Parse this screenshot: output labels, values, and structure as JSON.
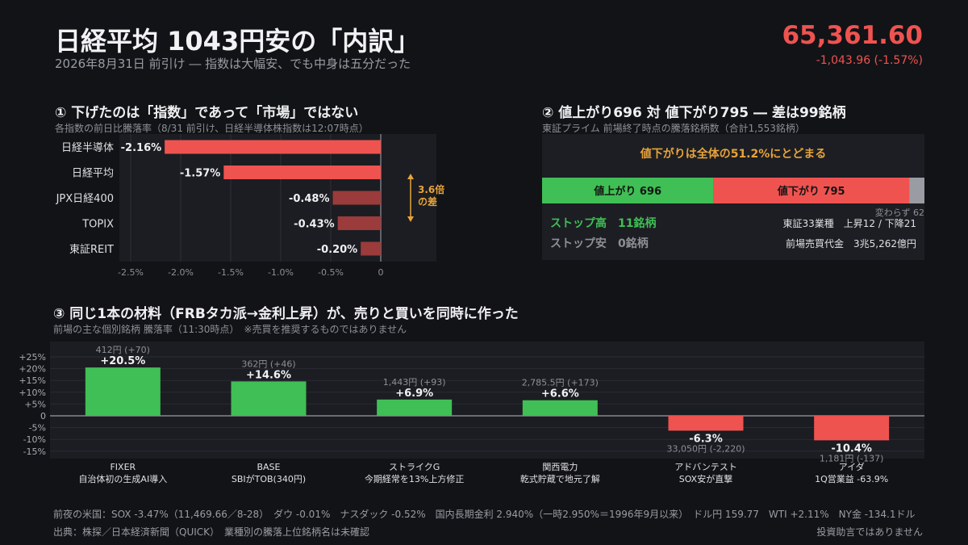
{
  "header": {
    "title": "日経平均 1043円安の「内訳」",
    "subtitle": "2026年8月31日 前引け ― 指数は大幅安、でも中身は五分だった",
    "price": "65,361.60",
    "change": "-1,043.96 (-1.57%)"
  },
  "section1": {
    "title": "① 下げたのは「指数」であって「市場」ではない",
    "subtitle": "各指数の前日比騰落率（8/31 前引け、日経半導体株指数は12:07時点）",
    "annotation_line1": "3.6倍",
    "annotation_line2": "の差"
  },
  "section2": {
    "title": "② 値上がり696 対 値下がり795 ― 差は99銘柄",
    "subtitle": "東証プライム 前場終了時点の騰落銘柄数（合計1,553銘柄）",
    "headline": "値下がりは全体の51.2%にとどまる",
    "up_label": "値上がり 696",
    "down_label": "値下がり 795",
    "unchanged_label": "変わらず 62",
    "stop_high": "ストップ高　11銘柄",
    "stop_low": "ストップ安　0銘柄",
    "sectors": "東証33業種　上昇12 / 下降21",
    "turnover": "前場売買代金　3兆5,262億円"
  },
  "section3": {
    "title": "③ 同じ1本の材料（FRBタカ派→金利上昇）が、売りと買いを同時に作った",
    "subtitle": "前場の主な個別銘柄 騰落率（11:30時点）　※売買を推奨するものではありません"
  },
  "footer": {
    "line1": "前夜の米国：SOX -3.47%（11,469.66／8-28）　ダウ -0.01%　ナスダック -0.52%　国内長期金利 2.940%（一時2.950%＝1996年9月以来）　ドル円 159.77　WTI +2.11%　NY金 -134.1ドル",
    "source": "出典：株探／日本経済新聞（QUICK）　業種別の騰落上位銘柄名は未確認",
    "disclaimer": "投資助言ではありません"
  },
  "colors": {
    "red": "#ef5350",
    "red_dim": "#9b3b3b",
    "green": "#3fbf55",
    "gray": "#9a9ca3",
    "gold": "#e8a33a",
    "background": "#121317"
  },
  "chart_data": [
    {
      "type": "bar",
      "orientation": "horizontal",
      "categories": [
        "日経半導体",
        "日経平均",
        "JPX日経400",
        "TOPIX",
        "東証REIT"
      ],
      "values": [
        -2.16,
        -1.57,
        -0.48,
        -0.43,
        -0.2
      ],
      "value_labels": [
        "-2.16%",
        "-1.57%",
        "-0.48%",
        "-0.43%",
        "-0.20%"
      ],
      "xlim": [
        -2.5,
        0
      ],
      "xticks": [
        -2.5,
        -2.0,
        -1.5,
        -1.0,
        -0.5,
        0
      ],
      "xtick_labels": [
        "-2.5%",
        "-2.0%",
        "-1.5%",
        "-1.0%",
        "-0.5%",
        "0"
      ],
      "grid": true
    },
    {
      "type": "bar",
      "orientation": "stacked-horizontal",
      "categories": [
        "値上がり",
        "値下がり",
        "変わらず"
      ],
      "values": [
        696,
        795,
        62
      ]
    },
    {
      "type": "bar",
      "categories": [
        "FIXER",
        "BASE",
        "ストライクG",
        "関西電力",
        "アドバンテスト",
        "アイダ"
      ],
      "descriptions": [
        "自治体初の生成AI導入",
        "SBIがTOB(340円)",
        "今期経常を13%上方修正",
        "乾式貯蔵で地元了解",
        "SOX安が直撃",
        "1Q営業益 -63.9%"
      ],
      "values": [
        20.5,
        14.6,
        6.9,
        6.6,
        -6.3,
        -10.4
      ],
      "value_labels": [
        "+20.5%",
        "+14.6%",
        "+6.9%",
        "+6.6%",
        "-6.3%",
        "-10.4%"
      ],
      "price_labels": [
        "412円 (+70)",
        "362円 (+46)",
        "1,443円 (+93)",
        "2,785.5円 (+173)",
        "33,050円 (-2,220)",
        "1,181円 (-137)"
      ],
      "ylim": [
        -17,
        27
      ],
      "yticks": [
        -15,
        -10,
        -5,
        0,
        5,
        10,
        15,
        20,
        25
      ],
      "ytick_labels": [
        "-15%",
        "-10%",
        "-5%",
        "0",
        "+5%",
        "+10%",
        "+15%",
        "+20%",
        "+25%"
      ],
      "grid": true
    }
  ]
}
